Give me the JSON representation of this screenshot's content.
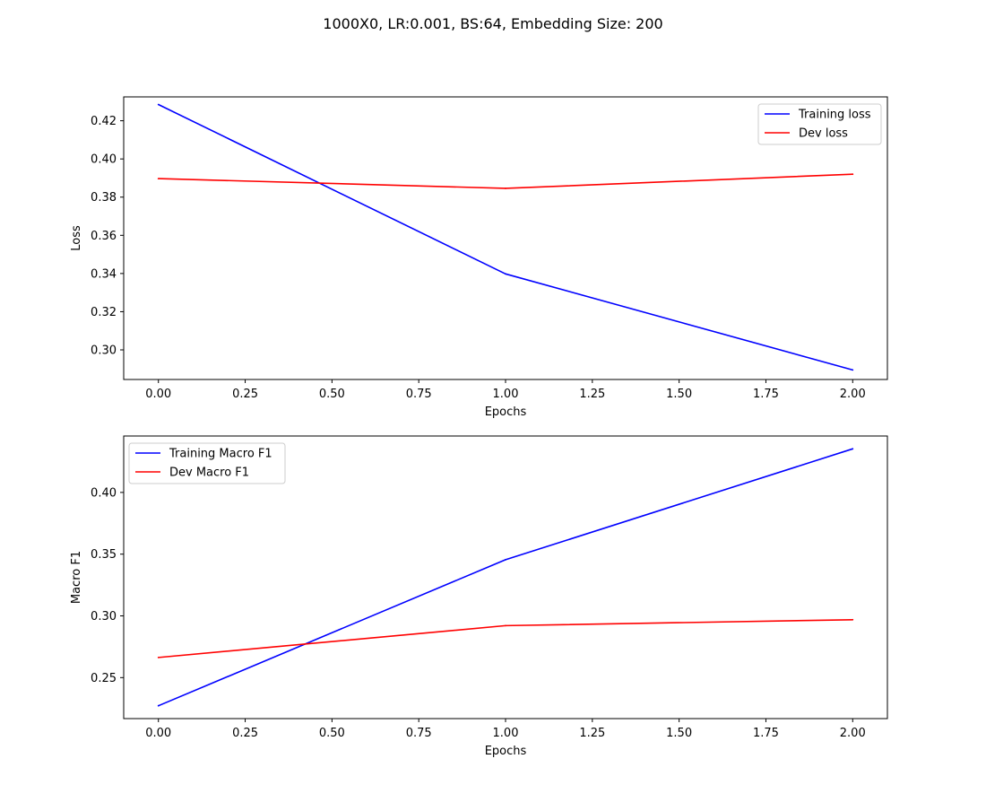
{
  "chart_data": {
    "title": "1000X0, LR:0.001, BS:64, Embedding Size: 200",
    "subplots": [
      {
        "type": "line",
        "xlabel": "Epochs",
        "ylabel": "Loss",
        "xlim": [
          -0.1,
          2.1
        ],
        "ylim": [
          0.2845,
          0.4325
        ],
        "xticks": [
          0.0,
          0.25,
          0.5,
          0.75,
          1.0,
          1.25,
          1.5,
          1.75,
          2.0
        ],
        "xtick_labels": [
          "0.00",
          "0.25",
          "0.50",
          "0.75",
          "1.00",
          "1.25",
          "1.50",
          "1.75",
          "2.00"
        ],
        "yticks": [
          0.3,
          0.32,
          0.34,
          0.36,
          0.38,
          0.4,
          0.42
        ],
        "ytick_labels": [
          "0.30",
          "0.32",
          "0.34",
          "0.36",
          "0.38",
          "0.40",
          "0.42"
        ],
        "grid": false,
        "legend_position": "upper right",
        "x": [
          0,
          1,
          2
        ],
        "series": [
          {
            "name": "Training loss",
            "color": "#0000ff",
            "values": [
              0.4285,
              0.3398,
              0.2895
            ]
          },
          {
            "name": "Dev loss",
            "color": "#ff0000",
            "values": [
              0.3897,
              0.3846,
              0.392
            ]
          }
        ]
      },
      {
        "type": "line",
        "xlabel": "Epochs",
        "ylabel": "Macro F1",
        "xlim": [
          -0.1,
          2.1
        ],
        "ylim": [
          0.2168,
          0.4457
        ],
        "xticks": [
          0.0,
          0.25,
          0.5,
          0.75,
          1.0,
          1.25,
          1.5,
          1.75,
          2.0
        ],
        "xtick_labels": [
          "0.00",
          "0.25",
          "0.50",
          "0.75",
          "1.00",
          "1.25",
          "1.50",
          "1.75",
          "2.00"
        ],
        "yticks": [
          0.25,
          0.3,
          0.35,
          0.4
        ],
        "ytick_labels": [
          "0.25",
          "0.30",
          "0.35",
          "0.40"
        ],
        "grid": false,
        "legend_position": "upper left",
        "x": [
          0,
          1,
          2
        ],
        "series": [
          {
            "name": "Training Macro F1",
            "color": "#0000ff",
            "values": [
              0.2272,
              0.3455,
              0.4353
            ]
          },
          {
            "name": "Dev Macro F1",
            "color": "#ff0000",
            "values": [
              0.2663,
              0.2921,
              0.2969
            ]
          }
        ]
      }
    ]
  }
}
